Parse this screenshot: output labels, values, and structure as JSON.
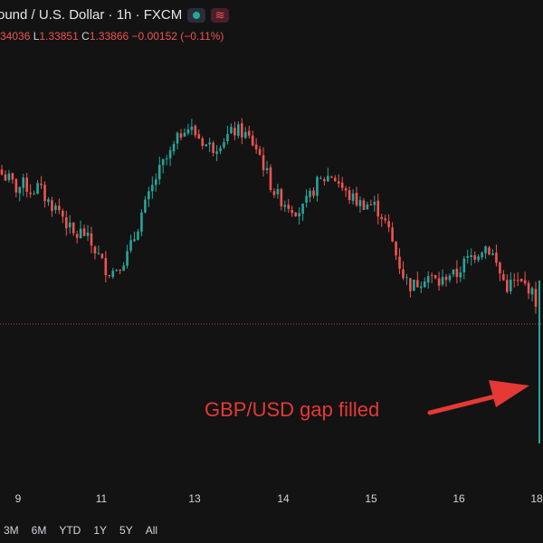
{
  "header": {
    "title": "ound / U.S. Dollar · 1h · FXCM",
    "ohlc": {
      "open": "34036",
      "low_label": "L",
      "low": "1.33851",
      "close_label": "C",
      "close": "1.33866",
      "change": "−0.00152",
      "change_pct": "(−0.11%)"
    }
  },
  "annotation": {
    "text": "GBP/USD gap filled",
    "color": "#e53935"
  },
  "x_axis": {
    "ticks": [
      "9",
      "11",
      "13",
      "14",
      "15",
      "16",
      "18"
    ]
  },
  "range_buttons": [
    "3M",
    "6M",
    "YTD",
    "1Y",
    "5Y",
    "All"
  ],
  "colors": {
    "up": "#26a69a",
    "down": "#ef5350",
    "background": "#131313",
    "last_price_line": "#ef5350"
  },
  "chart_data": {
    "type": "candlestick",
    "timeframe": "1h",
    "x_ticks": [
      "9",
      "11",
      "13",
      "14",
      "15",
      "16",
      "18"
    ],
    "last_price_line_y": 1.33866,
    "trace_close": [
      0.62,
      0.6,
      0.56,
      0.58,
      0.55,
      0.57,
      0.52,
      0.49,
      0.47,
      0.41,
      0.36,
      0.39,
      0.34,
      0.3,
      0.24,
      0.22,
      0.25,
      0.28,
      0.35,
      0.45,
      0.52,
      0.6,
      0.66,
      0.7,
      0.76,
      0.82,
      0.8,
      0.77,
      0.74,
      0.73,
      0.76,
      0.78,
      0.8,
      0.79,
      0.76,
      0.72,
      0.64,
      0.56,
      0.52,
      0.5,
      0.48,
      0.47,
      0.52,
      0.58,
      0.6,
      0.62,
      0.59,
      0.54,
      0.52,
      0.5,
      0.5,
      0.49,
      0.45,
      0.38,
      0.28,
      0.2,
      0.16,
      0.18,
      0.21,
      0.19,
      0.17,
      0.22,
      0.2,
      0.25,
      0.28,
      0.3,
      0.33,
      0.3,
      0.22,
      0.16,
      0.18,
      0.17,
      0.16,
      0.1
    ]
  }
}
